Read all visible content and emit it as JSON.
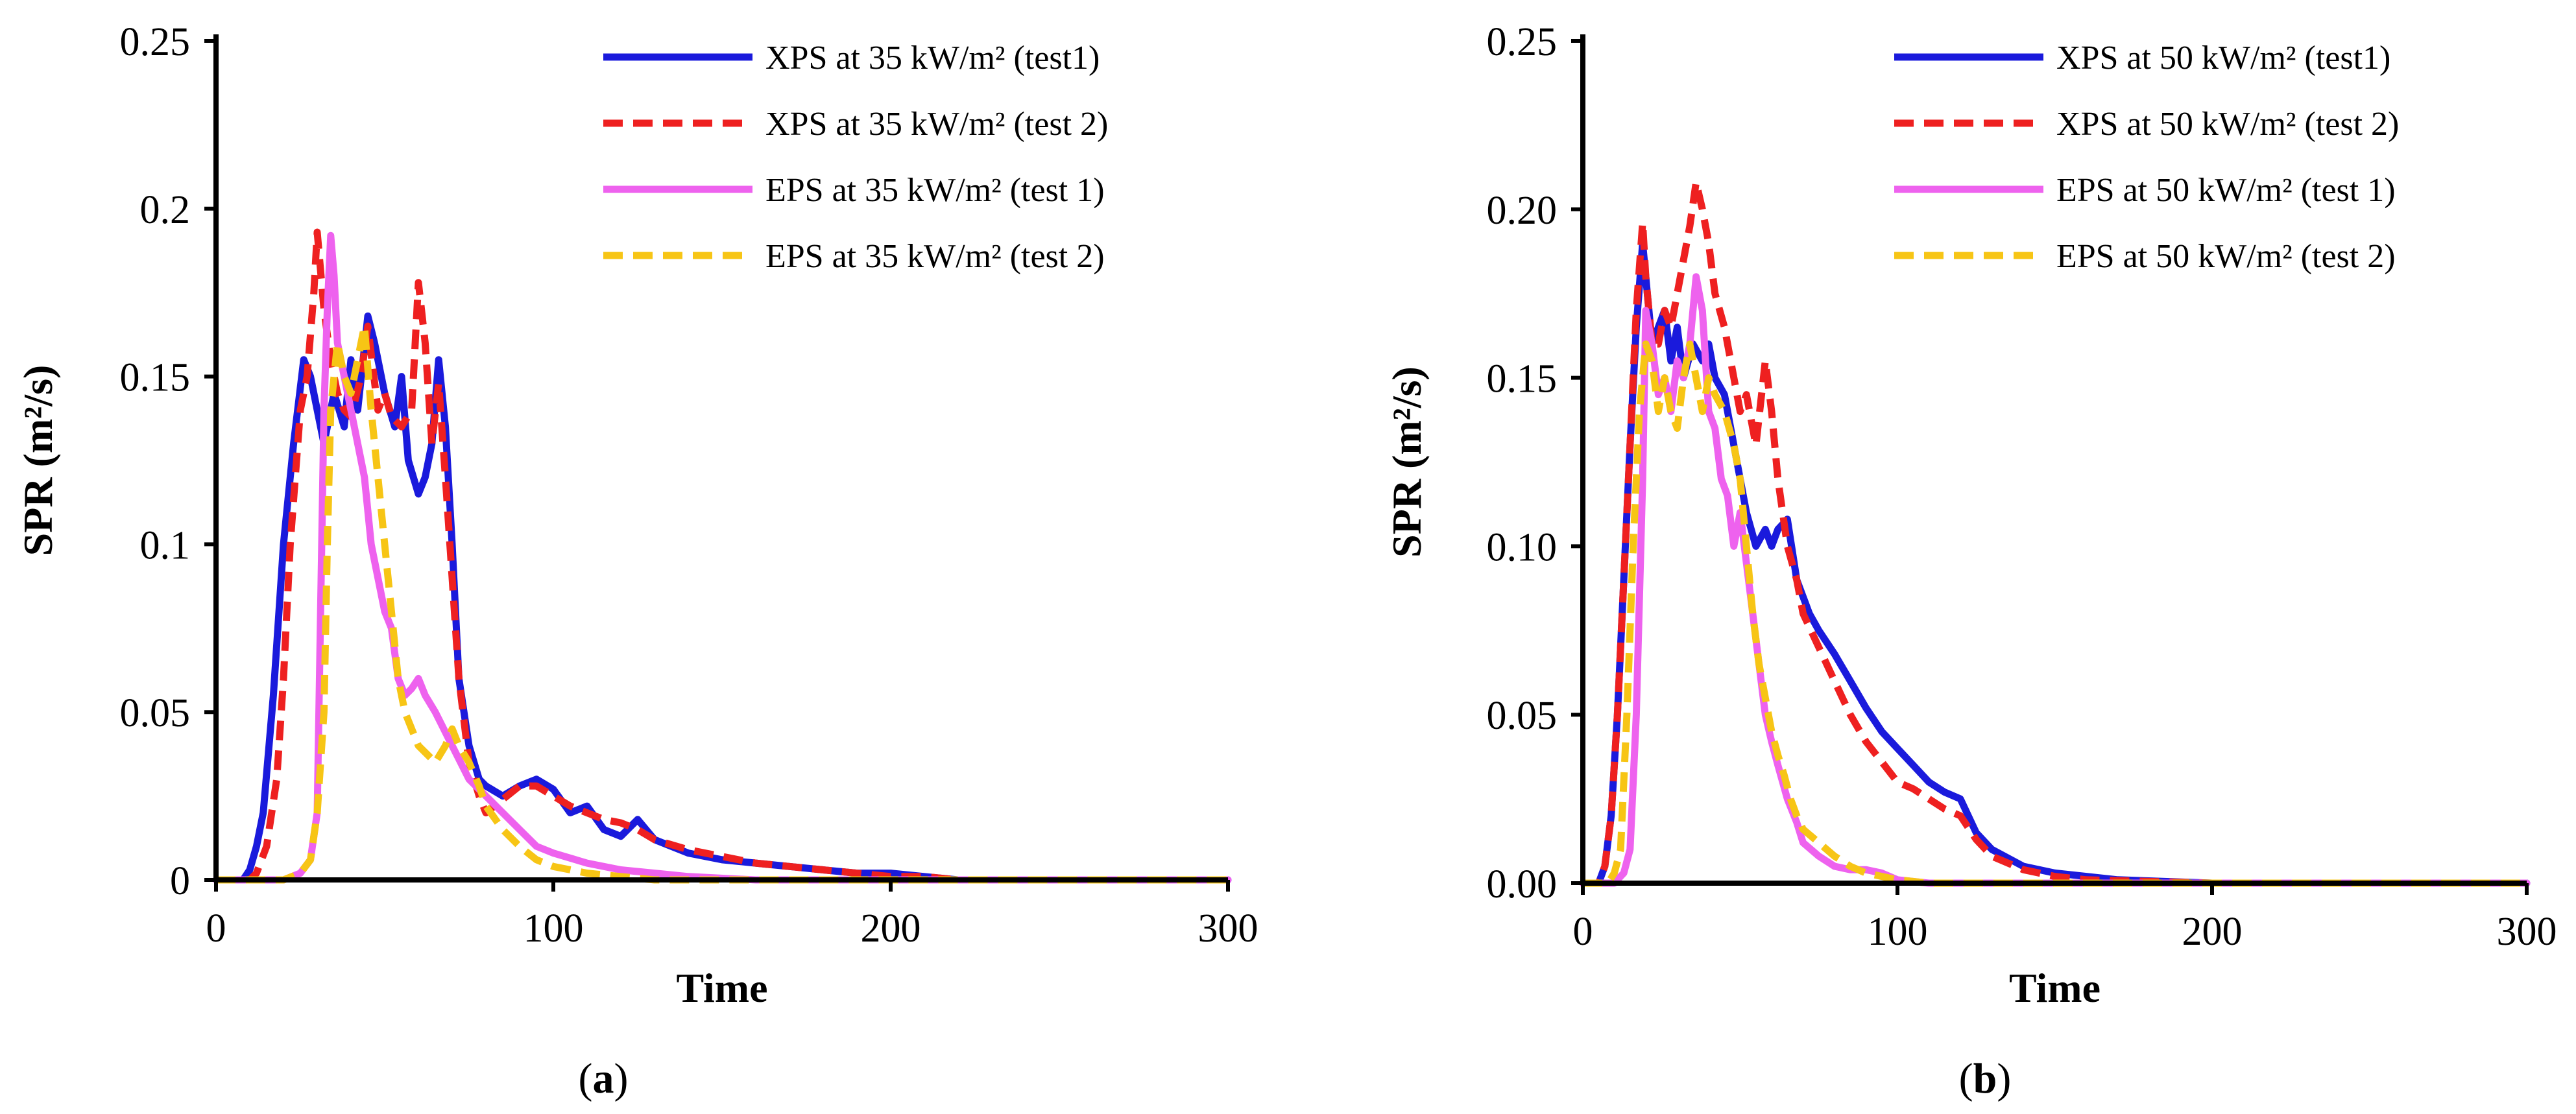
{
  "chart_data": [
    {
      "type": "line",
      "panel_label": "a",
      "title": "",
      "xlabel": "Time",
      "ylabel": "SPR (m²/s)",
      "xlim": [
        0,
        300
      ],
      "ylim": [
        0,
        0.25
      ],
      "x_ticks": [
        0,
        100,
        200,
        300
      ],
      "x_tick_labels": [
        "0",
        "100",
        "200",
        "300"
      ],
      "y_ticks": [
        0,
        0.05,
        0.1,
        0.15,
        0.2,
        0.25
      ],
      "y_tick_labels": [
        "0",
        "0.05",
        "0.1",
        "0.15",
        "0.2",
        "0.25"
      ],
      "legend_position": "top-right",
      "series": [
        {
          "name": "XPS at 35 kW/m² (test1)",
          "color": "#1a1adc",
          "dash": "solid",
          "x": [
            0,
            8,
            10,
            12,
            14,
            17,
            20,
            23,
            26,
            28,
            30,
            32,
            35,
            38,
            40,
            42,
            45,
            47,
            50,
            53,
            55,
            57,
            60,
            62,
            64,
            66,
            68,
            70,
            72,
            75,
            78,
            80,
            85,
            90,
            95,
            100,
            105,
            110,
            115,
            120,
            125,
            130,
            140,
            150,
            160,
            170,
            180,
            190,
            200,
            210,
            220,
            240,
            260,
            280,
            300
          ],
          "y": [
            0,
            0,
            0.003,
            0.01,
            0.02,
            0.055,
            0.1,
            0.13,
            0.155,
            0.15,
            0.14,
            0.13,
            0.145,
            0.135,
            0.155,
            0.14,
            0.168,
            0.16,
            0.145,
            0.135,
            0.15,
            0.125,
            0.115,
            0.12,
            0.13,
            0.155,
            0.135,
            0.1,
            0.06,
            0.04,
            0.03,
            0.028,
            0.025,
            0.028,
            0.03,
            0.027,
            0.02,
            0.022,
            0.015,
            0.013,
            0.018,
            0.012,
            0.008,
            0.006,
            0.005,
            0.004,
            0.003,
            0.002,
            0.002,
            0.001,
            0,
            0,
            0,
            0,
            0
          ]
        },
        {
          "name": "XPS at 35 kW/m² (test 2)",
          "color": "#ee2020",
          "dash": "dashed",
          "x": [
            0,
            10,
            12,
            15,
            18,
            20,
            22,
            25,
            27,
            29,
            30,
            32,
            34,
            36,
            38,
            40,
            43,
            45,
            48,
            50,
            52,
            55,
            58,
            60,
            62,
            64,
            66,
            68,
            70,
            72,
            75,
            78,
            80,
            85,
            90,
            95,
            100,
            105,
            110,
            115,
            120,
            125,
            130,
            140,
            150,
            160,
            170,
            180,
            190,
            200,
            210,
            220,
            240,
            260,
            280,
            300
          ],
          "y": [
            0,
            0,
            0.002,
            0.01,
            0.03,
            0.06,
            0.1,
            0.14,
            0.15,
            0.175,
            0.193,
            0.17,
            0.155,
            0.145,
            0.14,
            0.138,
            0.15,
            0.165,
            0.14,
            0.145,
            0.138,
            0.135,
            0.14,
            0.178,
            0.16,
            0.13,
            0.148,
            0.12,
            0.09,
            0.06,
            0.035,
            0.025,
            0.02,
            0.024,
            0.028,
            0.028,
            0.025,
            0.022,
            0.02,
            0.018,
            0.017,
            0.015,
            0.012,
            0.009,
            0.007,
            0.005,
            0.004,
            0.003,
            0.002,
            0.001,
            0.001,
            0,
            0,
            0,
            0,
            0
          ]
        },
        {
          "name": "EPS at 35 kW/m² (test 1)",
          "color": "#ee62ee",
          "dash": "solid",
          "x": [
            0,
            20,
            25,
            28,
            30,
            31,
            32,
            33,
            34,
            35,
            36,
            38,
            40,
            42,
            44,
            46,
            48,
            50,
            52,
            54,
            56,
            58,
            60,
            62,
            65,
            70,
            75,
            80,
            85,
            90,
            95,
            100,
            110,
            120,
            130,
            140,
            160,
            200,
            250,
            300
          ],
          "y": [
            0,
            0,
            0.002,
            0.006,
            0.02,
            0.08,
            0.14,
            0.17,
            0.192,
            0.18,
            0.16,
            0.15,
            0.14,
            0.13,
            0.12,
            0.1,
            0.09,
            0.08,
            0.075,
            0.06,
            0.055,
            0.057,
            0.06,
            0.055,
            0.05,
            0.04,
            0.03,
            0.025,
            0.02,
            0.015,
            0.01,
            0.008,
            0.005,
            0.003,
            0.002,
            0.001,
            0,
            0,
            0,
            0
          ]
        },
        {
          "name": "EPS at 35 kW/m² (test 2)",
          "color": "#f7c515",
          "dash": "dashed",
          "x": [
            0,
            20,
            25,
            28,
            30,
            32,
            33,
            34,
            36,
            38,
            40,
            42,
            44,
            46,
            48,
            50,
            52,
            54,
            56,
            58,
            60,
            62,
            65,
            68,
            70,
            72,
            75,
            78,
            80,
            85,
            90,
            95,
            100,
            110,
            120,
            130,
            140,
            160,
            200,
            250,
            300
          ],
          "y": [
            0,
            0,
            0.002,
            0.006,
            0.02,
            0.05,
            0.1,
            0.14,
            0.16,
            0.15,
            0.145,
            0.155,
            0.165,
            0.14,
            0.12,
            0.1,
            0.08,
            0.06,
            0.05,
            0.045,
            0.04,
            0.038,
            0.035,
            0.04,
            0.045,
            0.04,
            0.035,
            0.028,
            0.022,
            0.015,
            0.01,
            0.006,
            0.004,
            0.002,
            0.001,
            0,
            0,
            0,
            0,
            0,
            0
          ]
        }
      ]
    },
    {
      "type": "line",
      "panel_label": "b",
      "title": "",
      "xlabel": "Time",
      "ylabel": "SPR (m²/s)",
      "xlim": [
        0,
        300
      ],
      "ylim": [
        0,
        0.25
      ],
      "x_ticks": [
        0,
        100,
        200,
        300
      ],
      "x_tick_labels": [
        "0",
        "100",
        "200",
        "300"
      ],
      "y_ticks": [
        0,
        0.05,
        0.1,
        0.15,
        0.2,
        0.25
      ],
      "y_tick_labels": [
        "0.00",
        "0.05",
        "0.10",
        "0.15",
        "0.20",
        "0.25"
      ],
      "legend_position": "top-right",
      "series": [
        {
          "name": "XPS at 50 kW/m² (test1)",
          "color": "#1a1adc",
          "dash": "solid",
          "x": [
            0,
            5,
            7,
            9,
            11,
            13,
            15,
            17,
            19,
            20,
            22,
            24,
            26,
            28,
            30,
            32,
            35,
            38,
            40,
            42,
            45,
            48,
            50,
            52,
            55,
            58,
            60,
            62,
            65,
            68,
            70,
            72,
            75,
            80,
            85,
            90,
            95,
            100,
            105,
            110,
            115,
            120,
            125,
            130,
            140,
            150,
            160,
            170,
            200,
            250,
            300
          ],
          "y": [
            0,
            0,
            0.005,
            0.02,
            0.05,
            0.09,
            0.13,
            0.165,
            0.19,
            0.18,
            0.16,
            0.165,
            0.17,
            0.155,
            0.165,
            0.15,
            0.16,
            0.155,
            0.16,
            0.15,
            0.145,
            0.13,
            0.12,
            0.11,
            0.1,
            0.105,
            0.1,
            0.105,
            0.108,
            0.09,
            0.085,
            0.08,
            0.075,
            0.068,
            0.06,
            0.052,
            0.045,
            0.04,
            0.035,
            0.03,
            0.027,
            0.025,
            0.015,
            0.01,
            0.005,
            0.003,
            0.002,
            0.001,
            0,
            0,
            0
          ]
        },
        {
          "name": "XPS at 50 kW/m² (test 2)",
          "color": "#ee2020",
          "dash": "dashed",
          "x": [
            0,
            5,
            7,
            9,
            11,
            13,
            15,
            17,
            19,
            20,
            22,
            24,
            26,
            28,
            30,
            32,
            34,
            36,
            38,
            40,
            42,
            45,
            48,
            50,
            52,
            55,
            58,
            60,
            62,
            65,
            68,
            70,
            75,
            80,
            85,
            90,
            95,
            100,
            105,
            110,
            115,
            120,
            125,
            130,
            140,
            150,
            160,
            200,
            250,
            300
          ],
          "y": [
            0,
            0,
            0.005,
            0.02,
            0.05,
            0.09,
            0.13,
            0.17,
            0.196,
            0.18,
            0.16,
            0.16,
            0.17,
            0.165,
            0.175,
            0.185,
            0.195,
            0.208,
            0.2,
            0.19,
            0.175,
            0.165,
            0.15,
            0.14,
            0.145,
            0.13,
            0.155,
            0.14,
            0.12,
            0.1,
            0.09,
            0.08,
            0.07,
            0.06,
            0.05,
            0.042,
            0.036,
            0.03,
            0.028,
            0.025,
            0.022,
            0.02,
            0.013,
            0.008,
            0.004,
            0.002,
            0.001,
            0,
            0,
            0
          ]
        },
        {
          "name": "EPS at 50 kW/m² (test 1)",
          "color": "#ee62ee",
          "dash": "solid",
          "x": [
            0,
            10,
            13,
            15,
            17,
            19,
            20,
            22,
            24,
            26,
            28,
            30,
            32,
            34,
            36,
            38,
            40,
            42,
            44,
            46,
            48,
            50,
            52,
            54,
            56,
            58,
            60,
            62,
            65,
            68,
            70,
            75,
            80,
            85,
            90,
            95,
            100,
            110,
            120,
            150,
            200,
            250,
            300
          ],
          "y": [
            0,
            0,
            0.003,
            0.01,
            0.05,
            0.12,
            0.17,
            0.16,
            0.145,
            0.15,
            0.14,
            0.155,
            0.15,
            0.16,
            0.18,
            0.17,
            0.14,
            0.135,
            0.12,
            0.115,
            0.1,
            0.11,
            0.095,
            0.08,
            0.065,
            0.05,
            0.042,
            0.035,
            0.025,
            0.018,
            0.012,
            0.008,
            0.005,
            0.004,
            0.004,
            0.003,
            0.001,
            0,
            0,
            0,
            0,
            0,
            0
          ]
        },
        {
          "name": "EPS at 50 kW/m² (test 2)",
          "color": "#f7c515",
          "dash": "dashed",
          "x": [
            0,
            8,
            10,
            12,
            14,
            16,
            18,
            20,
            22,
            24,
            26,
            28,
            30,
            32,
            34,
            36,
            38,
            40,
            42,
            45,
            48,
            50,
            52,
            54,
            56,
            58,
            60,
            62,
            64,
            66,
            68,
            70,
            75,
            80,
            85,
            90,
            100,
            110,
            120,
            150,
            200,
            250,
            300
          ],
          "y": [
            0,
            0,
            0.003,
            0.01,
            0.05,
            0.1,
            0.14,
            0.16,
            0.155,
            0.14,
            0.15,
            0.14,
            0.135,
            0.15,
            0.16,
            0.15,
            0.14,
            0.15,
            0.145,
            0.14,
            0.13,
            0.12,
            0.1,
            0.08,
            0.065,
            0.055,
            0.045,
            0.038,
            0.032,
            0.025,
            0.02,
            0.016,
            0.012,
            0.008,
            0.005,
            0.003,
            0.001,
            0,
            0,
            0,
            0,
            0,
            0
          ]
        }
      ]
    }
  ]
}
